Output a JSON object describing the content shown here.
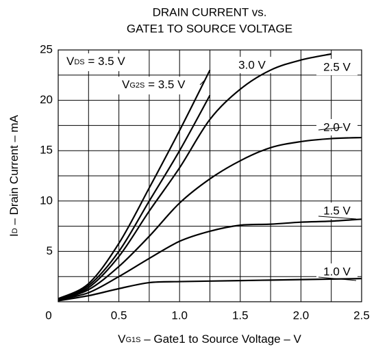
{
  "chart_data": {
    "type": "line",
    "title": [
      "DRAIN CURRENT vs.",
      "GATE1 TO SOURCE VOLTAGE"
    ],
    "x_label": {
      "main": "V",
      "sub": "G1S",
      "rest": " – Gate1 to Source Voltage – V"
    },
    "y_label": {
      "main": "I",
      "sub": "D",
      "rest": " – Drain Current – mA"
    },
    "annotations": [
      {
        "main": "V",
        "sub": "DS",
        "rest": " = 3.5 V"
      },
      {
        "main": "V",
        "sub": "G2S",
        "rest": " = "
      }
    ],
    "x": [
      0,
      0.25,
      0.5,
      0.75,
      1,
      1.25,
      1.5,
      1.75,
      2,
      2.25,
      2.5
    ],
    "series": [
      {
        "name": "1.0 V",
        "color": "#000000",
        "values": [
          0.1,
          0.6,
          1.3,
          1.9,
          2.0,
          2.05,
          2.1,
          2.15,
          2.2,
          2.25,
          2.3
        ]
      },
      {
        "name": "1.5 V",
        "color": "#000000",
        "values": [
          0.2,
          0.9,
          2.5,
          4.3,
          6.0,
          7.0,
          7.6,
          7.7,
          7.9,
          8.0,
          8.2
        ]
      },
      {
        "name": "2.0 V",
        "color": "#000000",
        "values": [
          0.2,
          1.2,
          3.5,
          6.5,
          9.8,
          12.2,
          14.0,
          15.3,
          15.9,
          16.2,
          16.3
        ]
      },
      {
        "name": "2.5 V",
        "color": "#000000",
        "values": [
          0.2,
          1.4,
          4.5,
          9.0,
          13.3,
          18.1,
          21.1,
          23.0,
          24.0,
          24.6,
          null
        ]
      },
      {
        "name": "3.0 V",
        "color": "#000000",
        "values": [
          0.2,
          1.6,
          5.0,
          10.0,
          15.0,
          20.5,
          null,
          null,
          null,
          null,
          null
        ]
      },
      {
        "name": "3.5 V",
        "color": "#000000",
        "values": [
          0.3,
          1.8,
          5.8,
          11.3,
          17.0,
          23.0,
          null,
          null,
          null,
          null,
          null
        ]
      }
    ],
    "xlim": [
      0,
      2.5
    ],
    "ylim": [
      0,
      25
    ],
    "xticks": [
      0,
      0.5,
      {
        "value": 1,
        "label": "1.0"
      },
      1.5,
      {
        "value": 2,
        "label": "2.0"
      },
      2.5
    ],
    "yticks": [
      5,
      10,
      15,
      20,
      25
    ],
    "grid": true
  }
}
